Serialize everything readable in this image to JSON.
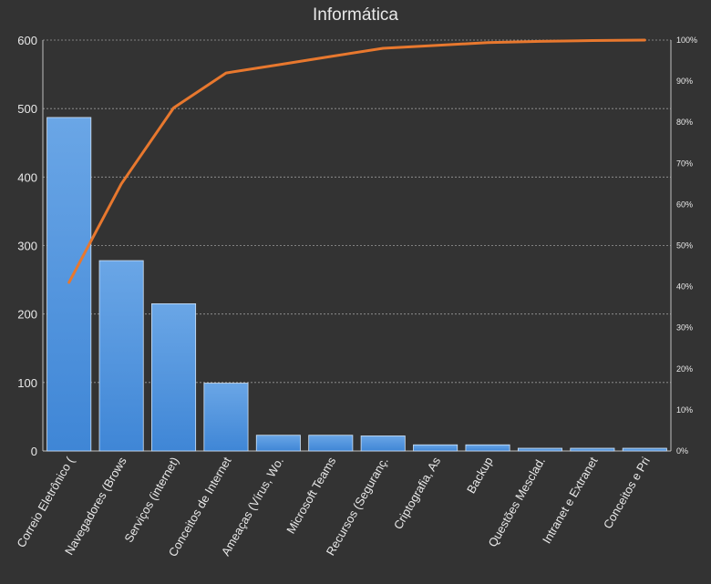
{
  "chart_data": {
    "type": "bar",
    "title": "Informática",
    "categories": [
      "Correio Eletrônico (",
      "Navegadores (Brows",
      "Serviços (internet)",
      "Conceitos de Internet",
      "Ameaças (Vírus, Wo.",
      "Microsoft Teams",
      "Recursos (Seguranç.",
      "Criptografia, As",
      "Backup",
      "Questões Mesclad.",
      "Intranet e Extranet",
      "Conceitos e Pri"
    ],
    "series": [
      {
        "type": "bar",
        "axis": "left",
        "values": [
          487,
          278,
          215,
          99,
          23,
          23,
          22,
          9,
          9,
          4,
          4,
          4
        ]
      },
      {
        "type": "line",
        "axis": "right",
        "unit": "%",
        "values": [
          41,
          65,
          83.5,
          92,
          94,
          96,
          98,
          98.7,
          99.4,
          99.7,
          99.9,
          100
        ]
      }
    ],
    "ylim": [
      0,
      600
    ],
    "yticks": [
      "0",
      "100",
      "200",
      "300",
      "400",
      "500",
      "600"
    ],
    "y2lim": [
      0,
      100
    ],
    "y2ticks": [
      "0%",
      "10%",
      "20%",
      "30%",
      "40%",
      "50%",
      "60%",
      "70%",
      "80%",
      "90%",
      "100%"
    ],
    "grid": true,
    "legend": "none",
    "colors": {
      "bar": "#4a90d9",
      "line": "#e8782e",
      "background": "#333333",
      "text": "#e8e8e8",
      "grid": "#9a9a9a"
    }
  }
}
